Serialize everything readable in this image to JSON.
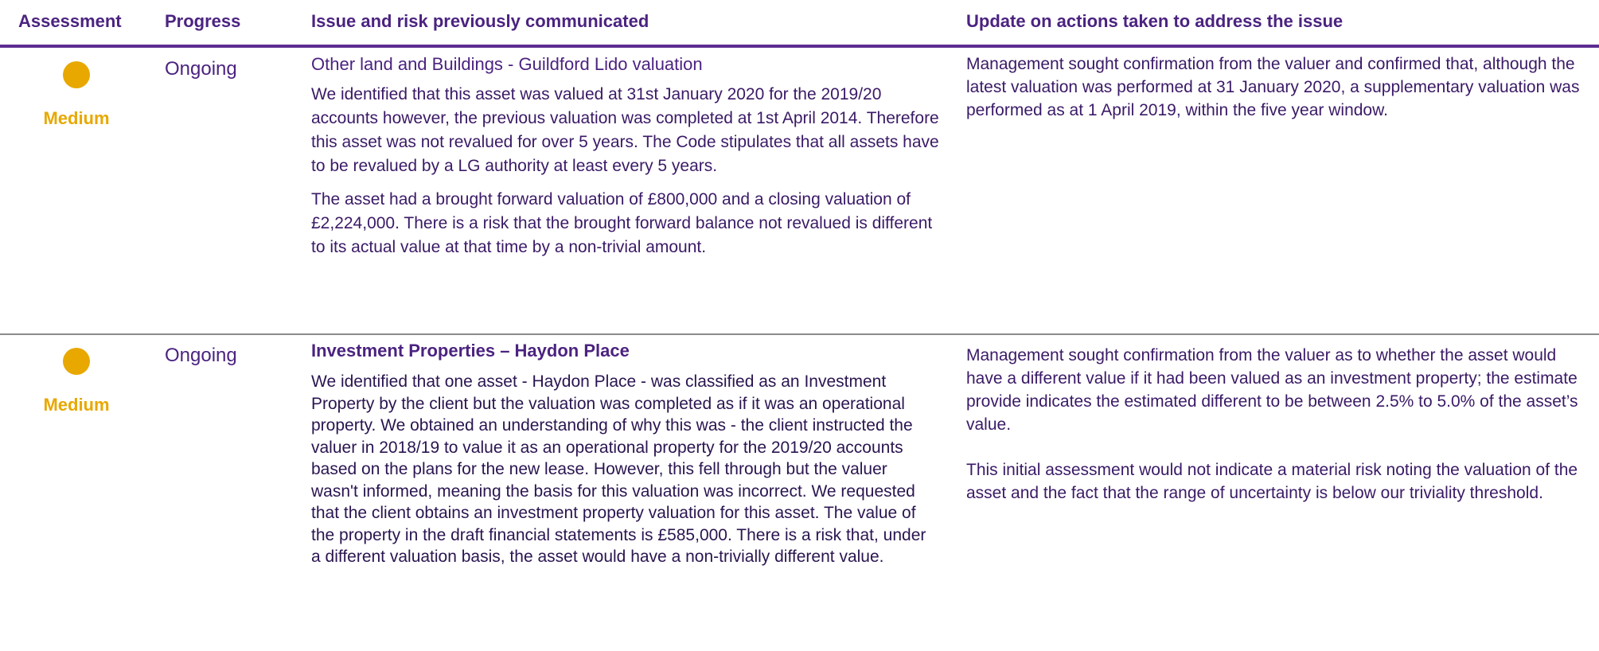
{
  "header": {
    "columns": [
      "Assessment",
      "Progress",
      "Issue and risk previously communicated",
      "Update on actions taken to address the issue"
    ]
  },
  "rows": [
    {
      "assessment": "Medium",
      "progress": "Ongoing",
      "issue_title": "Other land and Buildings - Guildford Lido valuation",
      "issue_paragraphs": [
        "We identified that this asset was valued at 31st January 2020 for the 2019/20 accounts however, the previous  valuation was completed at 1st April 2014. Therefore this asset was not revalued for over 5 years. The Code stipulates that all assets have to be revalued by a LG authority at least every 5 years.",
        "The asset had a brought forward valuation of £800,000 and a closing valuation of £2,224,000. There is a risk that the brought forward balance not revalued is different to its actual value at that time by a non-trivial amount."
      ],
      "update_paragraphs": [
        "Management sought confirmation from the valuer and confirmed that, although the latest valuation was performed at 31 January 2020, a supplementary valuation was performed as at 1 April 2019, within the five year window."
      ]
    },
    {
      "assessment": "Medium",
      "progress": "Ongoing",
      "issue_title": "Investment Properties – Haydon Place",
      "issue_paragraphs": [
        "We identified that one asset - Haydon Place - was classified as an Investment Property by the client but the valuation was completed as if it was an operational property. We obtained an understanding of why this was - the client instructed the valuer in 2018/19 to value it as an operational property for the 2019/20 accounts based on the plans for the new lease. However, this fell through but the valuer wasn't informed, meaning the basis for this valuation was incorrect.  We requested that the client obtains an investment property valuation for this asset. The value of the property in the draft financial statements is £585,000. There is a risk that, under a different valuation basis, the asset would have a non-trivially different value."
      ],
      "update_paragraphs": [
        "Management sought confirmation from the valuer as to whether the asset would have a different value if it had been valued as an investment property; the estimate provide indicates the estimated different to be between 2.5% to 5.0% of the asset’s value.",
        "This initial assessment would not indicate a material risk noting the valuation of the asset and the fact that the range of uncertainty is below our triviality threshold."
      ]
    }
  ]
}
